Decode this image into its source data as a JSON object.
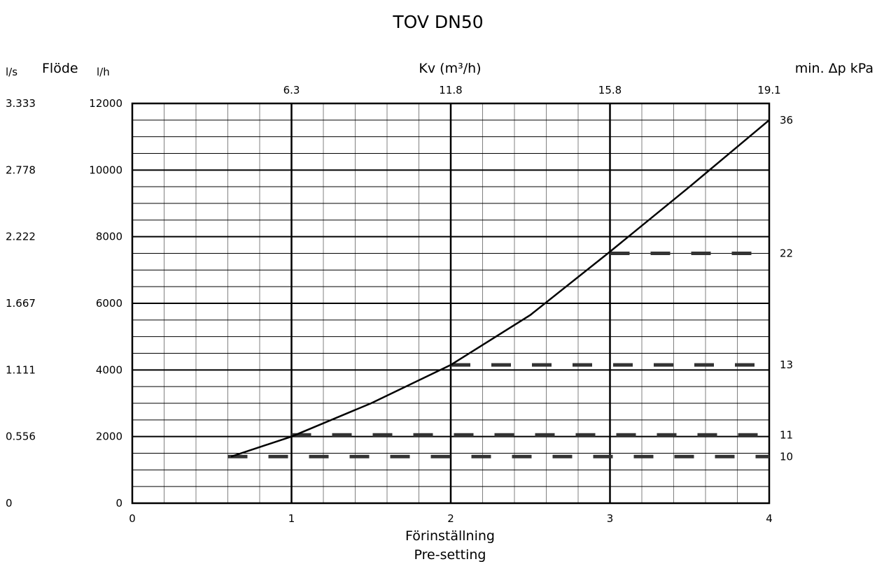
{
  "chart_data": {
    "type": "line",
    "title": "TOV DN50",
    "xlabel_line1": "Förinställning",
    "xlabel_line2": "Pre-setting",
    "left_outer_label": "l/s",
    "left_heading": "Flöde",
    "left_inner_label": "l/h",
    "top_label": "Kv (m³/h)",
    "right_label": "min. Δp kPa",
    "x_ticks": [
      "0",
      "1",
      "2",
      "3",
      "4"
    ],
    "xlim": [
      0,
      4
    ],
    "ylim": [
      0,
      12000
    ],
    "y_ticks_lh": [
      "0",
      "2000",
      "4000",
      "6000",
      "8000",
      "10000",
      "12000"
    ],
    "y_ticks_ls": [
      "0",
      "0.556",
      "1.111",
      "1.667",
      "2.222",
      "2.778",
      "3.333"
    ],
    "kv_ticks": [
      {
        "x": 1,
        "label": "6.3"
      },
      {
        "x": 2,
        "label": "11.8"
      },
      {
        "x": 3,
        "label": "15.8"
      },
      {
        "x": 4,
        "label": "19.1"
      }
    ],
    "grid": true,
    "curve": {
      "x": [
        0.62,
        1.0,
        1.5,
        2.0,
        2.5,
        3.0,
        3.5,
        4.0
      ],
      "y": [
        1400,
        2000,
        3000,
        4150,
        5650,
        7550,
        9500,
        11500
      ]
    },
    "dashed_lines": [
      {
        "x_start": 0.6,
        "x_end": 4,
        "y": 1400,
        "dp_label": "10"
      },
      {
        "x_start": 1.0,
        "x_end": 4,
        "y": 2050,
        "dp_label": "11"
      },
      {
        "x_start": 2.0,
        "x_end": 4,
        "y": 4150,
        "dp_label": "13"
      },
      {
        "x_start": 3.0,
        "x_end": 4,
        "y": 7500,
        "dp_label": "22"
      },
      {
        "x_start": 4.0,
        "x_end": 4,
        "y": 11500,
        "dp_label": "36"
      }
    ],
    "colors": {
      "line": "#000000",
      "grid": "#000000",
      "dash": "#333333"
    }
  }
}
